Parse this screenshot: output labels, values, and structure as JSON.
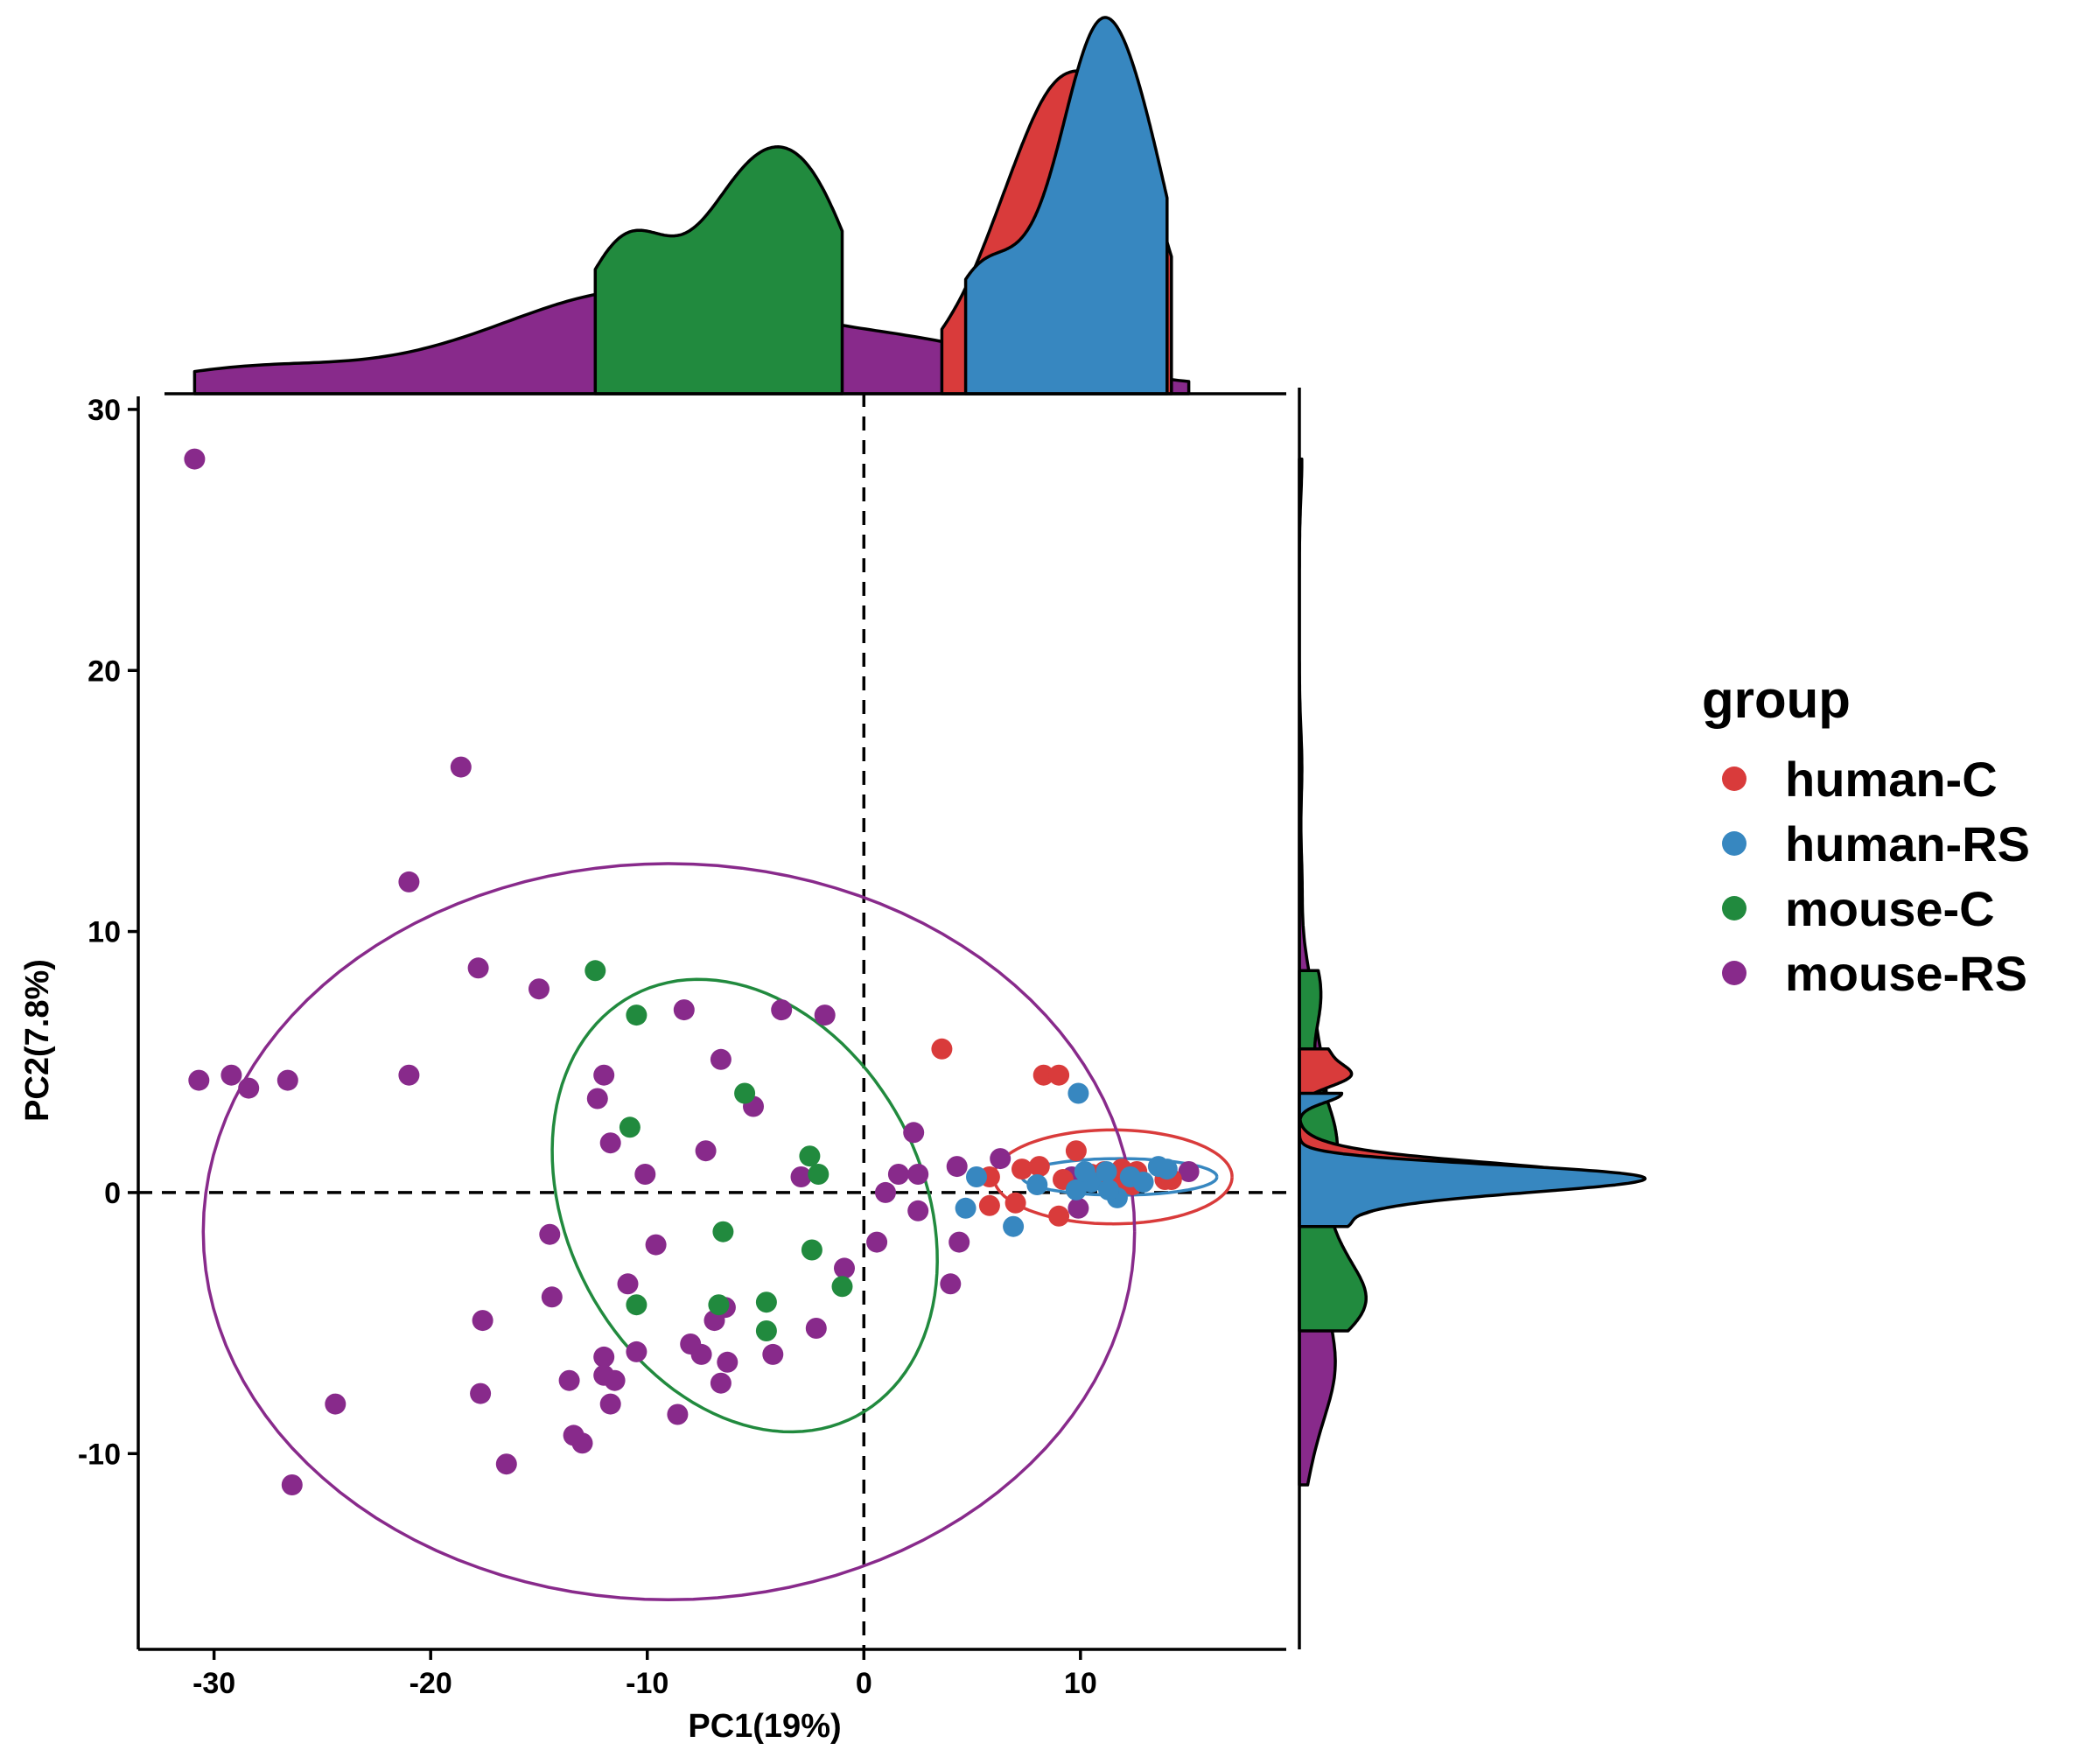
{
  "chart_data": {
    "type": "scatter",
    "xlabel": "PC1(19%)",
    "ylabel": "PC2(7.8%)",
    "xlim": [
      -33.5,
      19.5
    ],
    "ylim": [
      -17.5,
      30.5
    ],
    "xticks": [
      -30,
      -20,
      -10,
      0,
      10
    ],
    "yticks": [
      30,
      20,
      10,
      0,
      -10
    ],
    "reference_lines": {
      "x": 0,
      "y": 0,
      "style": "dashed"
    },
    "marginal_density": {
      "top": true,
      "right": true
    },
    "grid": false,
    "legend": {
      "title": "group",
      "position": "right"
    },
    "series": [
      {
        "name": "human-C",
        "color": "#d93b3b",
        "ellipse": {
          "cx": 11.5,
          "cy": 0.6,
          "rx": 5.5,
          "ry": 1.8,
          "angle": 0
        },
        "points": [
          [
            3.6,
            5.5
          ],
          [
            8.3,
            4.5
          ],
          [
            9.0,
            4.5
          ],
          [
            9.8,
            1.6
          ],
          [
            5.8,
            0.6
          ],
          [
            7.3,
            0.9
          ],
          [
            8.1,
            1.0
          ],
          [
            9.2,
            0.5
          ],
          [
            10.5,
            0.7
          ],
          [
            11.1,
            0.8
          ],
          [
            11.9,
            0.9
          ],
          [
            12.4,
            0.3
          ],
          [
            13.9,
            0.5
          ],
          [
            5.8,
            -0.5
          ],
          [
            7.0,
            -0.4
          ],
          [
            9.0,
            -0.9
          ],
          [
            11.6,
            0.2
          ],
          [
            10.9,
            0.6
          ],
          [
            12.6,
            0.8
          ],
          [
            14.2,
            0.5
          ]
        ]
      },
      {
        "name": "human-RS",
        "color": "#3787c0",
        "ellipse": {
          "cx": 11.8,
          "cy": 0.6,
          "rx": 4.5,
          "ry": 0.7,
          "angle": 0
        },
        "points": [
          [
            9.9,
            3.8
          ],
          [
            5.2,
            0.6
          ],
          [
            4.7,
            -0.6
          ],
          [
            6.9,
            -1.3
          ],
          [
            8.0,
            0.3
          ],
          [
            9.8,
            0.1
          ],
          [
            10.5,
            0.4
          ],
          [
            11.2,
            0.8
          ],
          [
            11.7,
            -0.2
          ],
          [
            12.3,
            0.6
          ],
          [
            12.9,
            0.4
          ],
          [
            13.6,
            1.0
          ],
          [
            14.0,
            0.9
          ],
          [
            10.2,
            0.8
          ],
          [
            11.3,
            0.1
          ]
        ]
      },
      {
        "name": "mouse-C",
        "color": "#218a3e",
        "ellipse": {
          "cx": -5.5,
          "cy": -0.5,
          "rx": 11.0,
          "ry": 6.8,
          "angle": -62
        },
        "points": [
          [
            -12.4,
            8.5
          ],
          [
            -10.5,
            6.8
          ],
          [
            -5.5,
            3.8
          ],
          [
            -10.8,
            2.5
          ],
          [
            -2.5,
            1.4
          ],
          [
            -2.1,
            0.7
          ],
          [
            -6.5,
            -1.5
          ],
          [
            -2.4,
            -2.2
          ],
          [
            -1.0,
            -3.6
          ],
          [
            -4.5,
            -4.2
          ],
          [
            -10.5,
            -4.3
          ],
          [
            -6.7,
            -4.3
          ],
          [
            -4.5,
            -5.3
          ]
        ]
      },
      {
        "name": "mouse-RS",
        "color": "#882a8b",
        "ellipse": {
          "cx": -9.0,
          "cy": -1.5,
          "rx": 21.5,
          "ry": 14.1,
          "angle": 0
        },
        "points": [
          [
            -30.9,
            28.1
          ],
          [
            -18.6,
            16.3
          ],
          [
            -21.0,
            11.9
          ],
          [
            -17.8,
            8.6
          ],
          [
            -15.0,
            7.8
          ],
          [
            -8.3,
            7.0
          ],
          [
            -3.8,
            7.0
          ],
          [
            -1.8,
            6.8
          ],
          [
            -6.6,
            5.1
          ],
          [
            -30.7,
            4.3
          ],
          [
            -29.2,
            4.5
          ],
          [
            -28.4,
            4.0
          ],
          [
            -26.6,
            4.3
          ],
          [
            -21.0,
            4.5
          ],
          [
            -12.0,
            4.5
          ],
          [
            -12.3,
            3.6
          ],
          [
            -5.1,
            3.3
          ],
          [
            -11.7,
            1.9
          ],
          [
            -7.3,
            1.6
          ],
          [
            2.3,
            2.3
          ],
          [
            -10.1,
            0.7
          ],
          [
            -2.9,
            0.6
          ],
          [
            1.6,
            0.7
          ],
          [
            2.5,
            0.7
          ],
          [
            4.3,
            1.0
          ],
          [
            6.3,
            1.3
          ],
          [
            9.6,
            0.6
          ],
          [
            11.9,
            0.4
          ],
          [
            15.0,
            0.8
          ],
          [
            1.0,
            0.0
          ],
          [
            2.5,
            -0.7
          ],
          [
            4.4,
            -1.9
          ],
          [
            9.9,
            -0.6
          ],
          [
            -14.5,
            -1.6
          ],
          [
            -9.6,
            -2.0
          ],
          [
            0.6,
            -1.9
          ],
          [
            -0.9,
            -2.9
          ],
          [
            -10.9,
            -3.5
          ],
          [
            -14.4,
            -4.0
          ],
          [
            4.0,
            -3.5
          ],
          [
            -17.6,
            -4.9
          ],
          [
            -6.9,
            -4.9
          ],
          [
            -6.4,
            -4.4
          ],
          [
            -2.2,
            -5.2
          ],
          [
            -10.5,
            -6.1
          ],
          [
            -12.0,
            -6.3
          ],
          [
            -8.0,
            -5.8
          ],
          [
            -7.5,
            -6.2
          ],
          [
            -6.3,
            -6.5
          ],
          [
            -4.2,
            -6.2
          ],
          [
            -13.6,
            -7.2
          ],
          [
            -12.0,
            -7.0
          ],
          [
            -11.5,
            -7.2
          ],
          [
            -6.6,
            -7.3
          ],
          [
            -17.7,
            -7.7
          ],
          [
            -11.7,
            -8.1
          ],
          [
            -24.4,
            -8.1
          ],
          [
            -8.6,
            -8.5
          ],
          [
            -13.4,
            -9.3
          ],
          [
            -13.0,
            -9.6
          ],
          [
            -16.5,
            -10.4
          ],
          [
            -26.4,
            -11.2
          ]
        ]
      }
    ]
  }
}
